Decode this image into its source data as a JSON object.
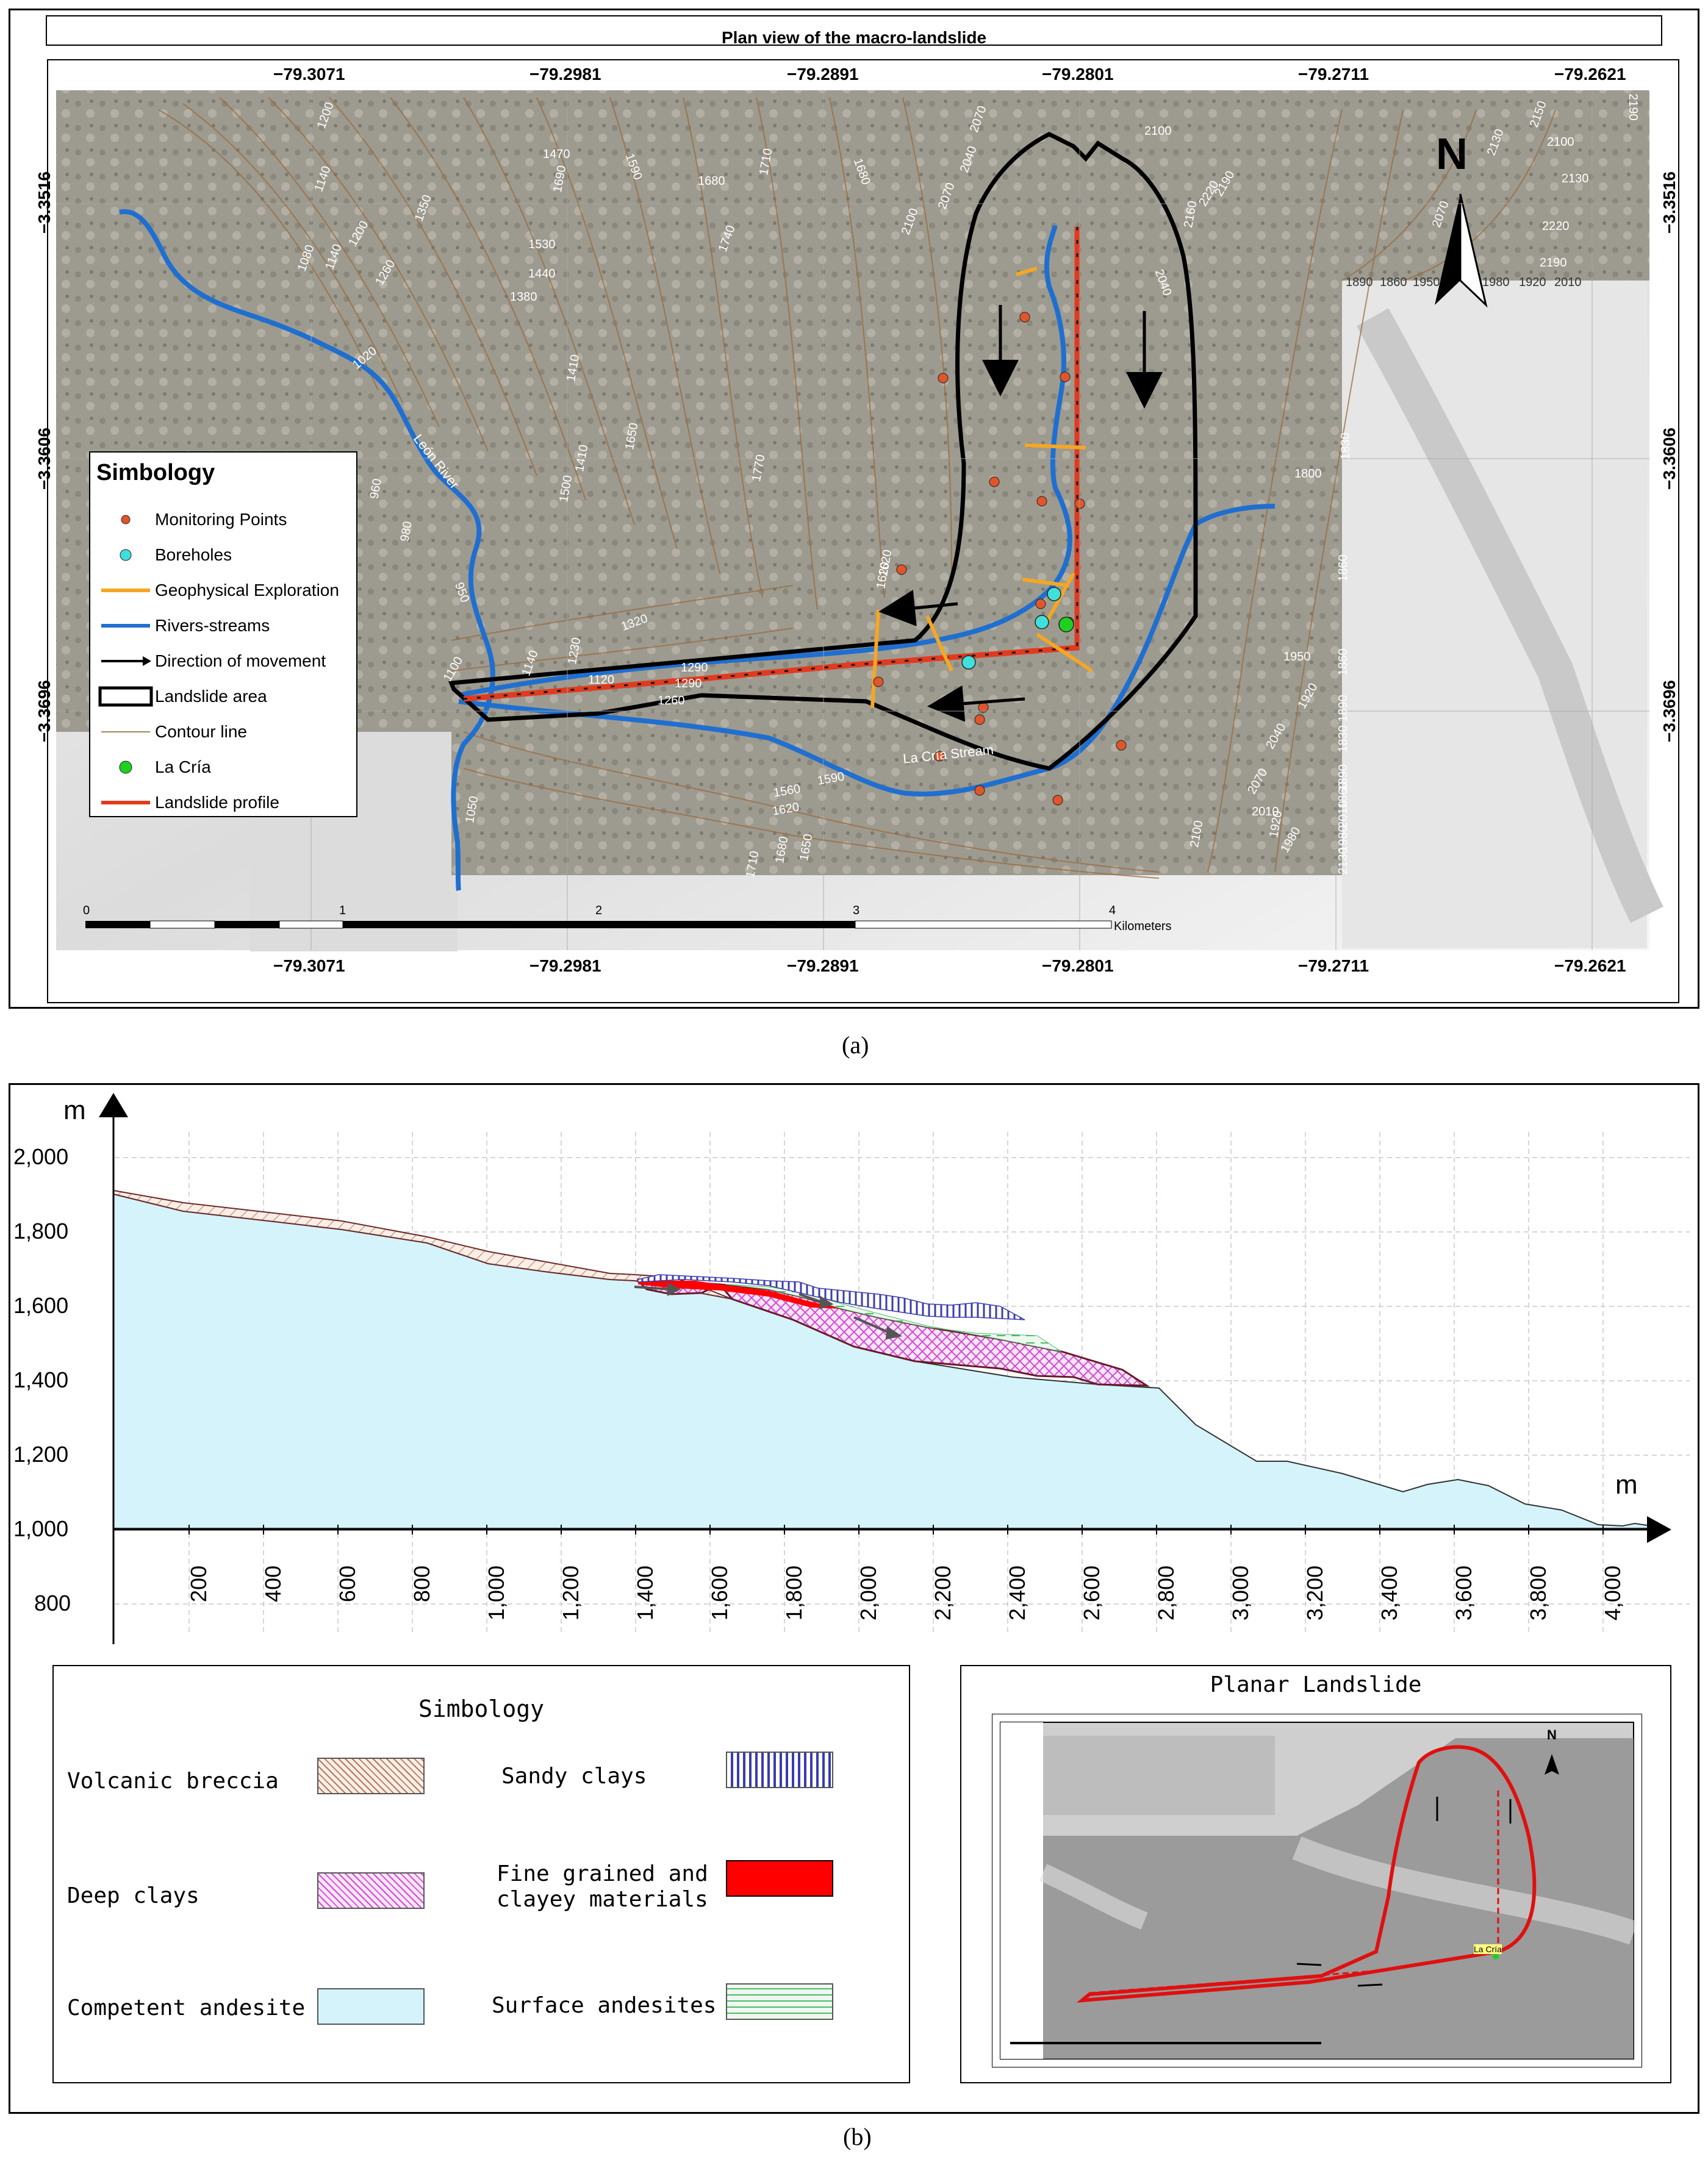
{
  "panel_a": {
    "title": "Plan view of the macro-landslide",
    "caption": "(a)",
    "longitudes_top": [
      "−79.3071",
      "−79.2981",
      "−79.2891",
      "−79.2801",
      "−79.2711",
      "−79.2621"
    ],
    "longitudes_bottom": [
      "−79.3071",
      "−79.2981",
      "−79.2891",
      "−79.2801",
      "−79.2711",
      "−79.2621"
    ],
    "latitudes_left": [
      "−3.3516",
      "−3.3606",
      "−3.3696"
    ],
    "latitudes_right": [
      "−3.3516",
      "−3.3606",
      "−3.3696"
    ],
    "north_label": "N",
    "scale": {
      "ticks": [
        "0",
        "1",
        "2",
        "3",
        "4"
      ],
      "unit": "Kilometers"
    },
    "map_labels": {
      "river": "León River",
      "stream": "La Cría Stream"
    },
    "contour_labels": [
      "1200",
      "1140",
      "1080",
      "1140",
      "1200",
      "1260",
      "1350",
      "1470",
      "1590",
      "1690",
      "1680",
      "1710",
      "1740",
      "1530",
      "1440",
      "1380",
      "1410",
      "1650",
      "1410",
      "1020",
      "1620",
      "1770",
      "1500",
      "1680",
      "1620",
      "1320",
      "960",
      "980",
      "950",
      "1100",
      "1140",
      "1230",
      "1290",
      "1260",
      "1290",
      "1120",
      "1560",
      "1590",
      "1620",
      "1710",
      "1680",
      "1650",
      "1050",
      "2070",
      "2100",
      "2160",
      "2190",
      "2220",
      "2040",
      "2100",
      "2070",
      "2040",
      "1800",
      "1830",
      "1860",
      "1890",
      "1950",
      "1860",
      "1890",
      "2010",
      "1980",
      "1920",
      "2010",
      "2040",
      "2070",
      "2100",
      "1920",
      "1830",
      "2130",
      "1980",
      "1860",
      "2130",
      "2150",
      "2190",
      "2220",
      "2100",
      "2130",
      "2190",
      "2070",
      "1890",
      "1860",
      "1950",
      "1980",
      "1920",
      "2010"
    ],
    "legend": {
      "title": "Simbology",
      "items": [
        {
          "label": "Monitoring Points",
          "icon": "orange-dot"
        },
        {
          "label": "Boreholes",
          "icon": "cyan-dot"
        },
        {
          "label": "Geophysical Exploration",
          "icon": "orange-line"
        },
        {
          "label": "Rivers-streams",
          "icon": "blue-line"
        },
        {
          "label": "Direction of movement",
          "icon": "black-arrow"
        },
        {
          "label": "Landslide area",
          "icon": "black-outline-box"
        },
        {
          "label": "Contour line",
          "icon": "thin-line"
        },
        {
          "label": "La Cría",
          "icon": "green-dot"
        },
        {
          "label": "Landslide profile",
          "icon": "red-line"
        }
      ]
    },
    "colors": {
      "monitoring": "#e0552a",
      "borehole": "#3fe0dc",
      "geophysical": "#f5a623",
      "river": "#1f6fd1",
      "profile": "#e23a1f",
      "la_cria": "#20d020"
    }
  },
  "panel_b": {
    "caption": "(b)",
    "y_unit": "m",
    "x_unit": "m",
    "y_ticks": [
      "2,000",
      "1,800",
      "1,600",
      "1,400",
      "1,200",
      "1,000",
      "800"
    ],
    "x_ticks": [
      "200",
      "400",
      "600",
      "800",
      "1,000",
      "1,200",
      "1,400",
      "1,600",
      "1,800",
      "2,000",
      "2,200",
      "2,400",
      "2,600",
      "2,800",
      "3,000",
      "3,200",
      "3,400",
      "3,600",
      "3,800",
      "4,000"
    ],
    "legend": {
      "title": "Simbology",
      "items": [
        {
          "label": "Volcanic breccia",
          "pattern": "diagonal-hatch",
          "color": "#b5785a"
        },
        {
          "label": "Sandy clays",
          "pattern": "vertical-lines",
          "color": "#3b3bb0"
        },
        {
          "label": "Deep clays",
          "pattern": "crosshatch",
          "color": "#d24ad2"
        },
        {
          "label": "Fine grained and clayey materials",
          "label_line1": "Fine grained and",
          "label_line2": "clayey materials",
          "pattern": "solid",
          "color": "#ff0000"
        },
        {
          "label": "Competent andesite",
          "pattern": "solid",
          "color": "#d5f3fb"
        },
        {
          "label": "Surface andesites",
          "pattern": "dashes",
          "color": "#4cb86a"
        }
      ]
    },
    "inset": {
      "title": "Planar Landslide",
      "site_label": "La Cría",
      "north_label": "N"
    }
  }
}
